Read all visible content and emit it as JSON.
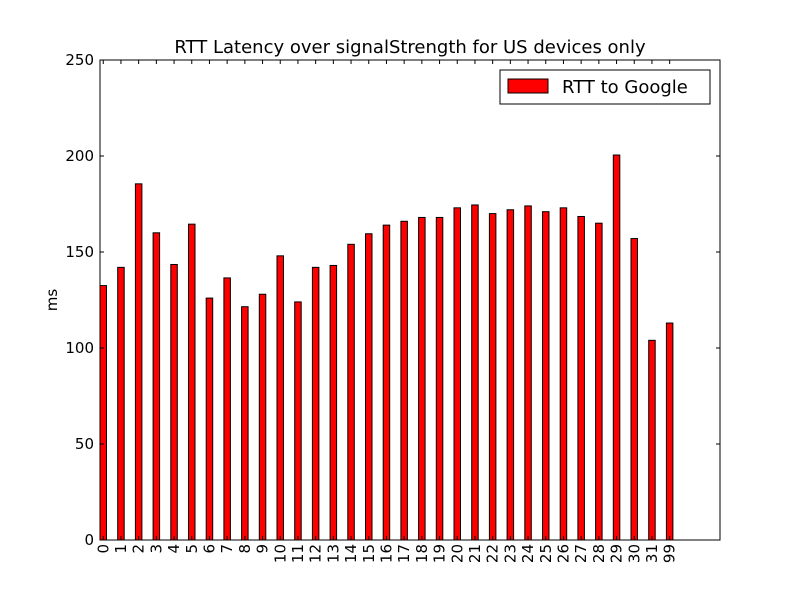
{
  "chart_data": {
    "type": "bar",
    "title": "RTT Latency over signalStrength for US devices only",
    "xlabel": "",
    "ylabel": "ms",
    "ylim": [
      0,
      250
    ],
    "yticks": [
      0,
      50,
      100,
      150,
      200,
      250
    ],
    "categories": [
      "0",
      "1",
      "2",
      "3",
      "4",
      "5",
      "6",
      "7",
      "8",
      "9",
      "10",
      "11",
      "12",
      "13",
      "14",
      "15",
      "16",
      "17",
      "18",
      "19",
      "20",
      "21",
      "22",
      "23",
      "24",
      "25",
      "26",
      "27",
      "28",
      "29",
      "30",
      "31",
      "99"
    ],
    "series": [
      {
        "name": "RTT to Google",
        "color": "#ff0000",
        "values": [
          132.5,
          142,
          185.5,
          160,
          143.5,
          164.5,
          126,
          136.5,
          121.5,
          128,
          148,
          124,
          142,
          143,
          154,
          159.5,
          164,
          166,
          168,
          168,
          173,
          174.5,
          170,
          172,
          174,
          171,
          173,
          168.5,
          165,
          200.5,
          157,
          104,
          113
        ]
      }
    ],
    "legend": {
      "position": "top-right"
    },
    "grid": false
  }
}
